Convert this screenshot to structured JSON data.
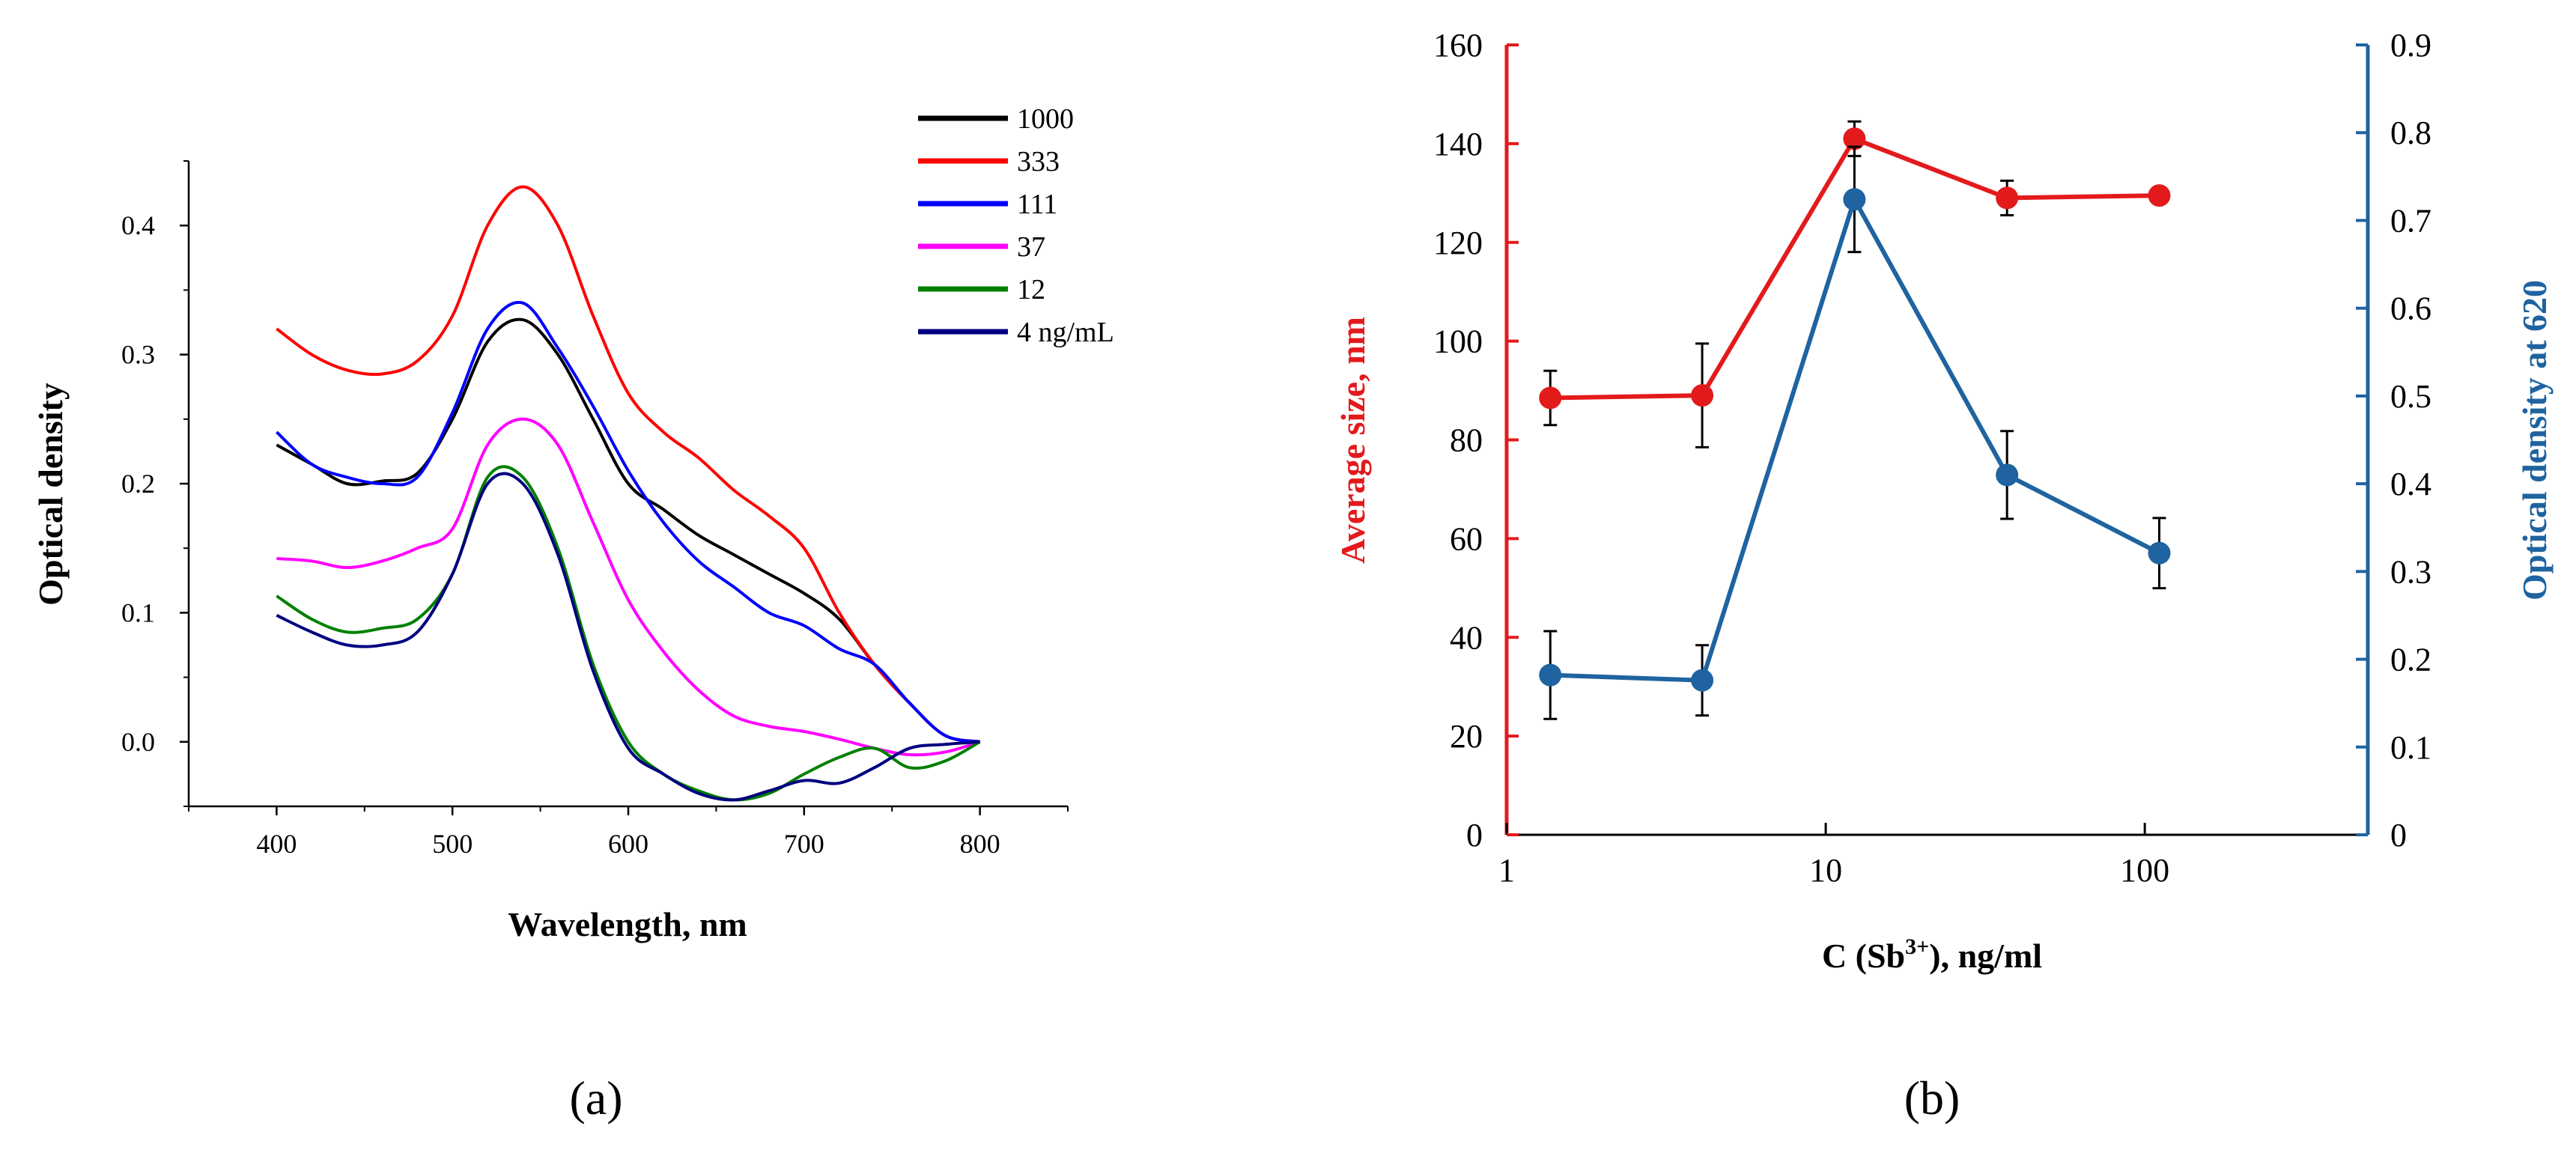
{
  "chart_data": [
    {
      "panel": "(a)",
      "type": "line",
      "xlabel": "Wavelength, nm",
      "ylabel": "Optical density",
      "xlim": [
        350,
        850
      ],
      "ylim": [
        -0.05,
        0.45
      ],
      "xticks": [
        400,
        500,
        600,
        700,
        800
      ],
      "xtick_labels": [
        "400",
        "500",
        "600",
        "700",
        "800"
      ],
      "yticks": [
        0.0,
        0.1,
        0.2,
        0.3,
        0.4
      ],
      "ytick_labels": [
        "0.0",
        "0.1",
        "0.2",
        "0.3",
        "0.4"
      ],
      "legend_position": "top-right",
      "x": [
        400,
        420,
        440,
        460,
        480,
        500,
        520,
        540,
        560,
        580,
        600,
        620,
        640,
        660,
        680,
        700,
        720,
        740,
        760,
        780,
        800
      ],
      "series": [
        {
          "name": "1000",
          "color": "#000000",
          "values": [
            0.23,
            0.215,
            0.2,
            0.202,
            0.208,
            0.25,
            0.31,
            0.327,
            0.3,
            0.25,
            0.2,
            0.18,
            0.16,
            0.145,
            0.13,
            0.115,
            0.095,
            0.06,
            0.03,
            0.005,
            0.0
          ]
        },
        {
          "name": "333",
          "color": "#ff0000",
          "values": [
            0.32,
            0.3,
            0.288,
            0.285,
            0.295,
            0.33,
            0.4,
            0.43,
            0.4,
            0.33,
            0.27,
            0.24,
            0.22,
            0.195,
            0.175,
            0.15,
            0.1,
            0.06,
            0.03,
            0.005,
            0.0
          ]
        },
        {
          "name": "111",
          "color": "#0000ff",
          "values": [
            0.24,
            0.215,
            0.205,
            0.2,
            0.205,
            0.255,
            0.32,
            0.34,
            0.305,
            0.26,
            0.21,
            0.17,
            0.14,
            0.12,
            0.1,
            0.09,
            0.072,
            0.06,
            0.03,
            0.005,
            0.0
          ]
        },
        {
          "name": "37",
          "color": "#ff00ff",
          "values": [
            0.142,
            0.14,
            0.135,
            0.14,
            0.15,
            0.165,
            0.23,
            0.25,
            0.23,
            0.17,
            0.11,
            0.07,
            0.04,
            0.02,
            0.012,
            0.008,
            0.002,
            -0.005,
            -0.01,
            -0.008,
            0.0
          ]
        },
        {
          "name": "12",
          "color": "#008000",
          "values": [
            0.113,
            0.095,
            0.085,
            0.088,
            0.095,
            0.13,
            0.205,
            0.205,
            0.15,
            0.06,
            0.0,
            -0.025,
            -0.038,
            -0.045,
            -0.04,
            -0.025,
            -0.012,
            -0.005,
            -0.02,
            -0.015,
            0.0
          ]
        },
        {
          "name": "4 ng/mL",
          "color": "#000080",
          "values": [
            0.098,
            0.085,
            0.075,
            0.075,
            0.085,
            0.13,
            0.2,
            0.2,
            0.145,
            0.055,
            -0.005,
            -0.025,
            -0.04,
            -0.045,
            -0.038,
            -0.03,
            -0.032,
            -0.02,
            -0.005,
            -0.002,
            0.0
          ]
        }
      ]
    },
    {
      "panel": "(b)",
      "type": "line",
      "xlabel_main": "C (Sb",
      "xlabel_sup": "3+",
      "xlabel_tail": "), ng/ml",
      "ylabel": "Average size, nm",
      "y2label": "Optical density at 620",
      "xscale": "log",
      "xlim": [
        1,
        500
      ],
      "ylim": [
        0,
        160
      ],
      "y2lim": [
        0,
        0.9
      ],
      "xticks": [
        1,
        10,
        100
      ],
      "xtick_labels": [
        "1",
        "10",
        "100"
      ],
      "yticks": [
        0,
        20,
        40,
        60,
        80,
        100,
        120,
        140,
        160
      ],
      "ytick_labels": [
        "0",
        "20",
        "40",
        "60",
        "80",
        "100",
        "120",
        "140",
        "160"
      ],
      "y2ticks": [
        0,
        0.1,
        0.2,
        0.3,
        0.4,
        0.5,
        0.6,
        0.7,
        0.8,
        0.9
      ],
      "y2tick_labels": [
        "0",
        "0.1",
        "0.2",
        "0.3",
        "0.4",
        "0.5",
        "0.6",
        "0.7",
        "0.8",
        "0.9"
      ],
      "x": [
        1.37,
        4.1,
        12.3,
        37,
        111
      ],
      "series": [
        {
          "name": "Average size",
          "axis": "left",
          "color": "#e31a1c",
          "values": [
            88.5,
            89,
            141,
            129,
            129.5
          ],
          "errors": [
            5.5,
            10.5,
            3.5,
            3.5,
            0
          ]
        },
        {
          "name": "Optical density at 620",
          "axis": "right",
          "color": "#1f63a0",
          "values": [
            0.182,
            0.176,
            0.724,
            0.41,
            0.321
          ],
          "errors": [
            0.05,
            0.04,
            0.06,
            0.05,
            0.04
          ]
        }
      ]
    }
  ]
}
